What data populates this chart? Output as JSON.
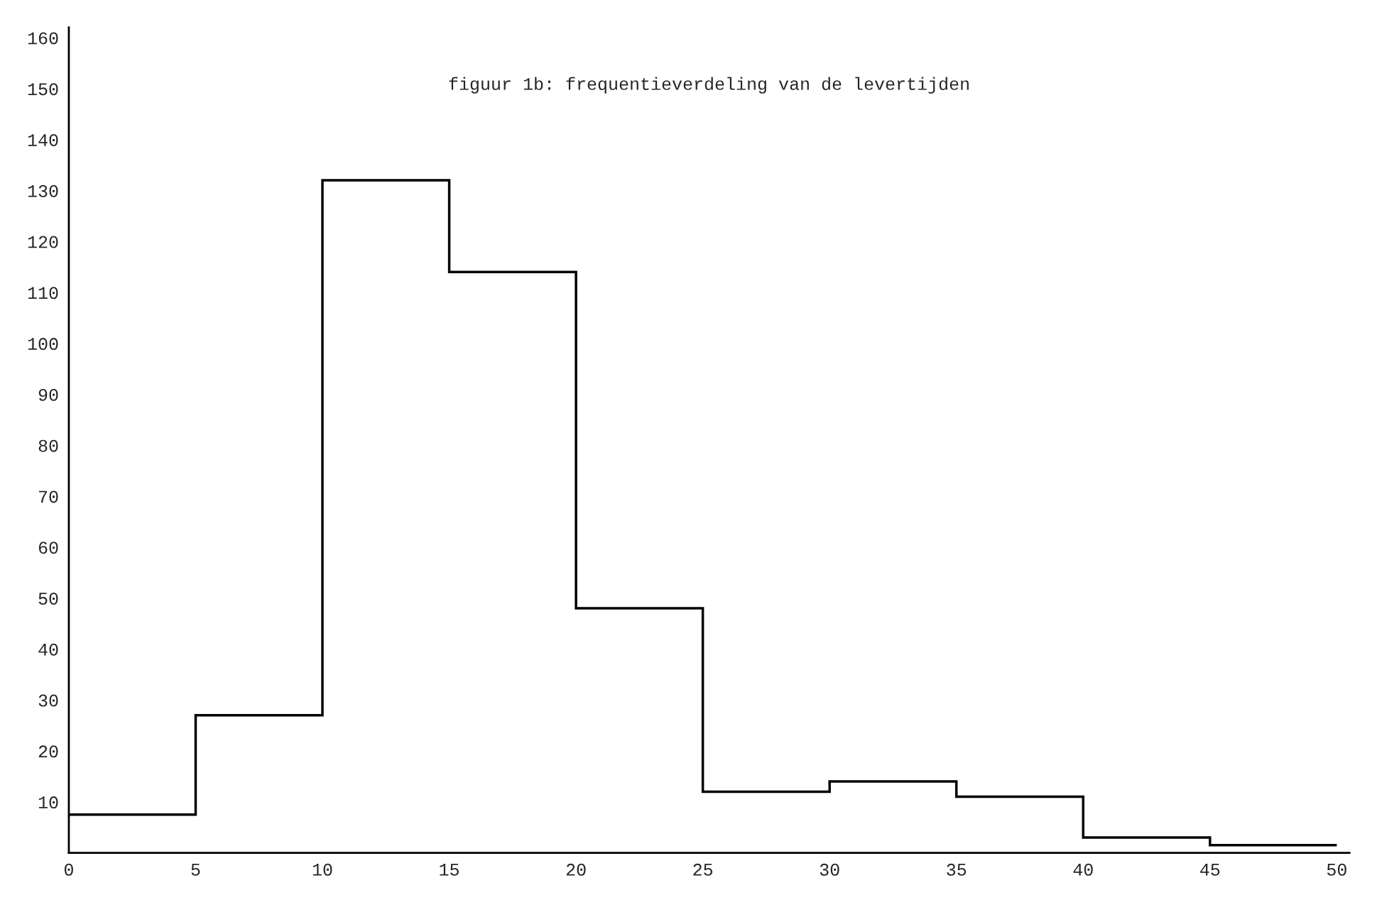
{
  "chart_data": {
    "type": "histogram",
    "title": "figuur 1b: frequentieverdeling van de levertijden",
    "bins": [
      0,
      5,
      10,
      15,
      20,
      25,
      30,
      35,
      40,
      45,
      50
    ],
    "values": [
      7.5,
      27,
      132,
      114,
      48,
      12,
      14,
      11,
      3,
      1.5
    ],
    "color": "#000000",
    "xlim": [
      0,
      50.5
    ],
    "ylim": [
      0,
      162
    ],
    "xticks": [
      0,
      5,
      10,
      15,
      20,
      25,
      30,
      35,
      40,
      45,
      50
    ],
    "yticks": [
      10,
      20,
      30,
      40,
      50,
      60,
      70,
      80,
      90,
      100,
      110,
      120,
      130,
      140,
      150,
      160
    ],
    "grid": false
  }
}
